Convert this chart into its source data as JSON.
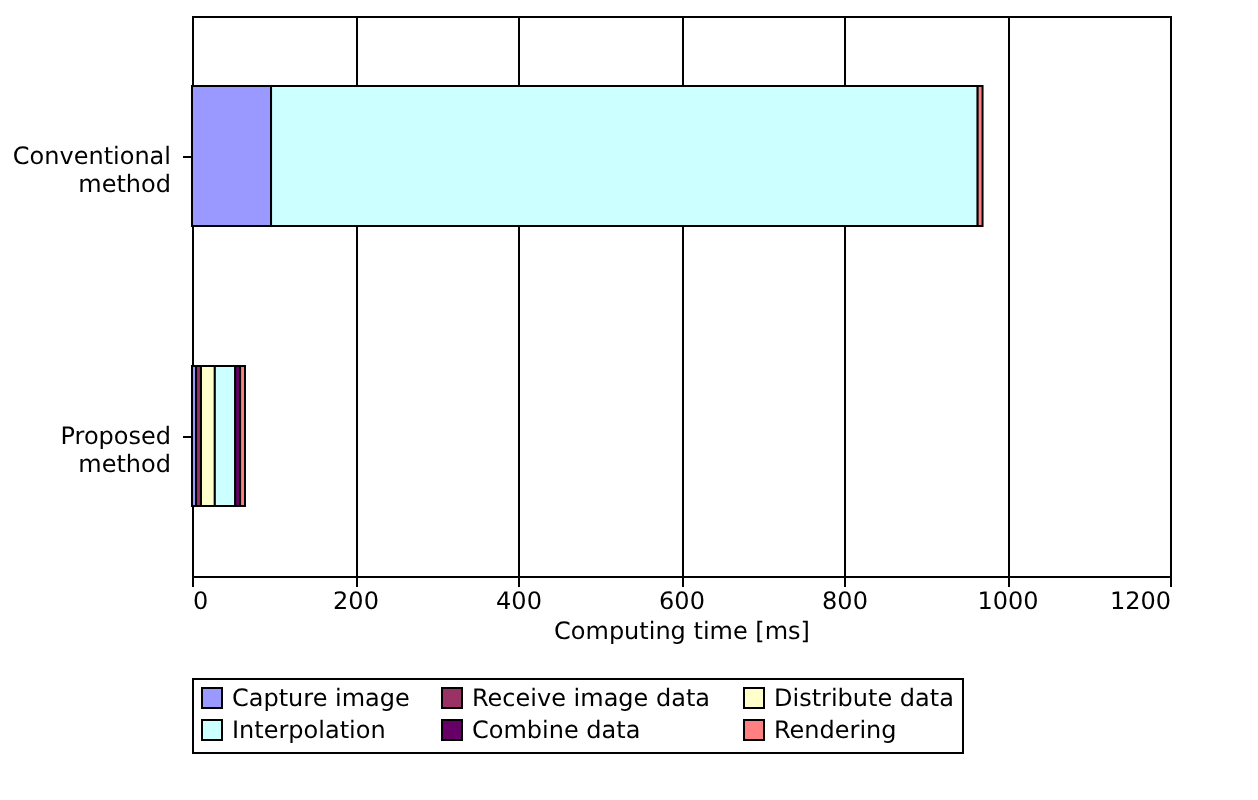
{
  "chart_data": {
    "type": "bar",
    "orientation": "horizontal",
    "stacked": true,
    "categories": [
      "Conventional\nmethod",
      "Proposed\nmethod"
    ],
    "series": [
      {
        "name": "Capture image",
        "color": "#9999ff",
        "values": [
          97,
          5
        ]
      },
      {
        "name": "Receive image data",
        "color": "#993366",
        "values": [
          0,
          6
        ]
      },
      {
        "name": "Distribute data",
        "color": "#ffffcc",
        "values": [
          0,
          17
        ]
      },
      {
        "name": "Interpolation",
        "color": "#ccffff",
        "values": [
          867,
          25
        ]
      },
      {
        "name": "Combine data",
        "color": "#660066",
        "values": [
          null,
          6
        ]
      },
      {
        "name": "Rendering",
        "color": "#ff8080",
        "values": [
          6,
          6
        ]
      }
    ],
    "xlabel": "Computing time [ms]",
    "xlim": [
      0,
      1200
    ],
    "xticks": [
      0,
      200,
      400,
      600,
      800,
      1000,
      1200
    ],
    "grid": "x",
    "legend": "bottom"
  }
}
